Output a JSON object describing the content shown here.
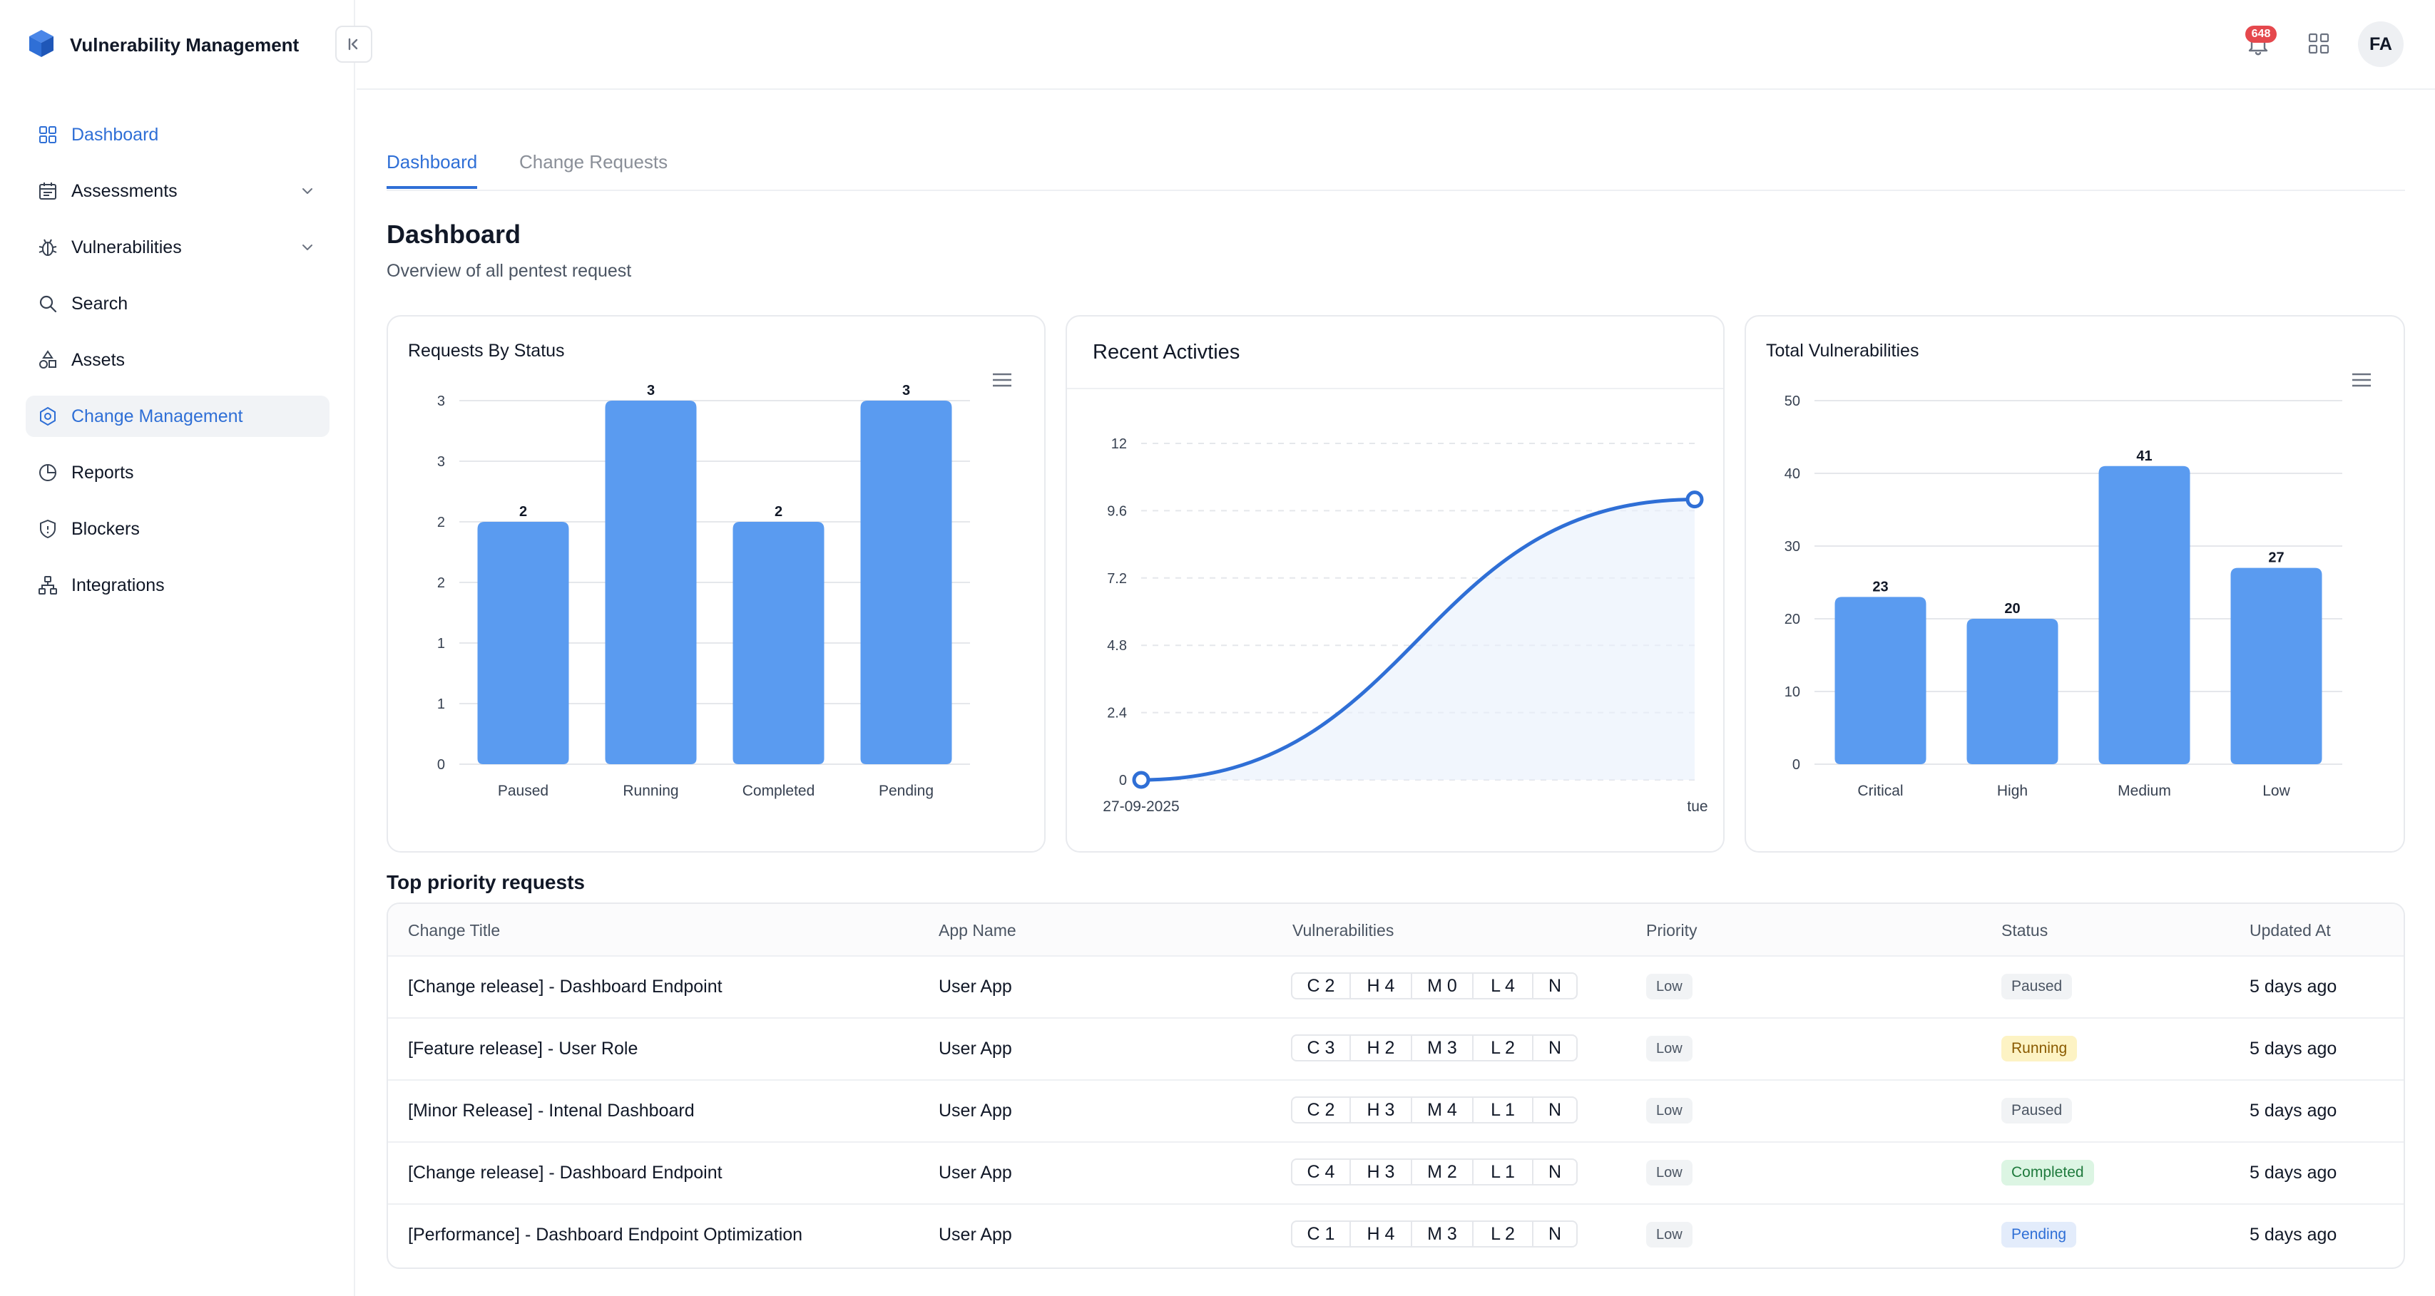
{
  "app": {
    "title": "Vulnerability Management"
  },
  "sidebar": {
    "items": [
      {
        "label": "Dashboard",
        "icon": "grid-icon"
      },
      {
        "label": "Assessments",
        "icon": "calendar-icon",
        "expandable": true
      },
      {
        "label": "Vulnerabilities",
        "icon": "bug-icon",
        "expandable": true
      },
      {
        "label": "Search",
        "icon": "search-icon"
      },
      {
        "label": "Assets",
        "icon": "shapes-icon"
      },
      {
        "label": "Change Management",
        "icon": "hexagon-icon",
        "selected": true
      },
      {
        "label": "Reports",
        "icon": "pie-chart-icon"
      },
      {
        "label": "Blockers",
        "icon": "shield-icon"
      },
      {
        "label": "Integrations",
        "icon": "network-icon"
      }
    ]
  },
  "header": {
    "notifications_count": "648",
    "avatar_initials": "FA"
  },
  "tabs": [
    {
      "label": "Dashboard",
      "active": true
    },
    {
      "label": "Change Requests",
      "active": false
    }
  ],
  "page": {
    "title": "Dashboard",
    "subtitle": "Overview of all pentest request"
  },
  "cards": {
    "requests_by_status": {
      "title": "Requests By Status"
    },
    "recent_activities": {
      "title": "Recent Activties"
    },
    "total_vulnerabilities": {
      "title": "Total Vulnerabilities"
    }
  },
  "chart_data": [
    {
      "type": "bar",
      "title": "Requests By Status",
      "categories": [
        "Paused",
        "Running",
        "Completed",
        "Pending"
      ],
      "values": [
        2,
        3,
        2,
        3
      ],
      "ytick_labels": [
        "0",
        "1",
        "1",
        "2",
        "2",
        "3",
        "3"
      ],
      "ylim": [
        0,
        3
      ],
      "grid": true,
      "bar_color": "#5a9bf0"
    },
    {
      "type": "area",
      "title": "Recent Activties",
      "x": [
        "27-09-2025",
        "tue"
      ],
      "values": [
        0,
        10
      ],
      "yticks": [
        0,
        2.4,
        4.8,
        7.2,
        9.6,
        12
      ],
      "ytick_labels": [
        "0",
        "2.4",
        "4.8",
        "7.2",
        "9.6",
        "12"
      ],
      "ylim": [
        0,
        12
      ],
      "grid": true,
      "line_color": "#2f6fd6"
    },
    {
      "type": "bar",
      "title": "Total Vulnerabilities",
      "categories": [
        "Critical",
        "High",
        "Medium",
        "Low"
      ],
      "values": [
        23,
        20,
        41,
        27
      ],
      "yticks": [
        0,
        10,
        20,
        30,
        40,
        50
      ],
      "ylim": [
        0,
        50
      ],
      "grid": true,
      "bar_color": "#5a9bf0"
    }
  ],
  "table": {
    "title": "Top priority requests",
    "headers": [
      "Change Title",
      "App Name",
      "Vulnerabilities",
      "Priority",
      "Status",
      "Updated At"
    ],
    "rows": [
      {
        "title": "[Change release] - Dashboard Endpoint",
        "app": "User App",
        "v": [
          "C 2",
          "H 4",
          "M 0",
          "L 4",
          "N"
        ],
        "priority": "Low",
        "status": "Paused",
        "status_kind": "paused",
        "updated": "5 days ago"
      },
      {
        "title": "[Feature release] - User Role",
        "app": "User App",
        "v": [
          "C 3",
          "H 2",
          "M 3",
          "L 2",
          "N"
        ],
        "priority": "Low",
        "status": "Running",
        "status_kind": "running",
        "updated": "5 days ago"
      },
      {
        "title": "[Minor Release] - Intenal Dashboard",
        "app": "User App",
        "v": [
          "C 2",
          "H 3",
          "M 4",
          "L 1",
          "N"
        ],
        "priority": "Low",
        "status": "Paused",
        "status_kind": "paused",
        "updated": "5 days ago"
      },
      {
        "title": "[Change release] - Dashboard Endpoint",
        "app": "User App",
        "v": [
          "C 4",
          "H 3",
          "M 2",
          "L 1",
          "N"
        ],
        "priority": "Low",
        "status": "Completed",
        "status_kind": "completed",
        "updated": "5 days ago"
      },
      {
        "title": "[Performance] - Dashboard Endpoint Optimization",
        "app": "User App",
        "v": [
          "C 1",
          "H 4",
          "M 3",
          "L 2",
          "N"
        ],
        "priority": "Low",
        "status": "Pending",
        "status_kind": "pending",
        "updated": "5 days ago"
      }
    ]
  },
  "colors": {
    "accent": "#2f6fd6",
    "status_paused_bg": "#f1f3f5",
    "status_paused_fg": "#4b5563",
    "status_running_bg": "#fdf3c4",
    "status_running_fg": "#8a5a00",
    "status_completed_bg": "#dcf5e3",
    "status_completed_fg": "#1f7a3d",
    "status_pending_bg": "#e3ecfb",
    "status_pending_fg": "#2f6fd6"
  }
}
